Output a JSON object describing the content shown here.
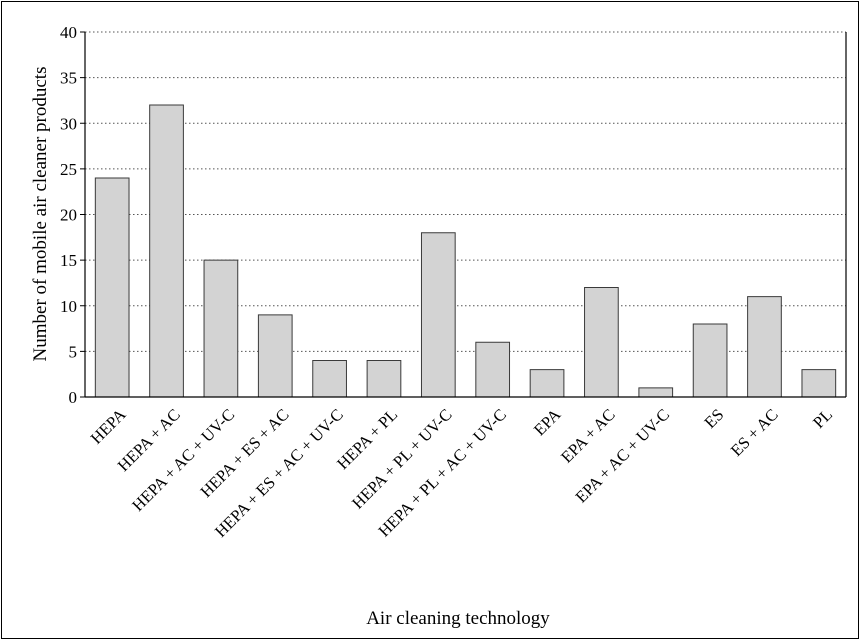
{
  "chart_data": {
    "type": "bar",
    "title": "",
    "xlabel": "Air cleaning technology",
    "ylabel": "Number of mobile air cleaner products",
    "ylim": [
      0,
      40
    ],
    "yticks": [
      0,
      5,
      10,
      15,
      20,
      25,
      30,
      35,
      40
    ],
    "grid": "horizontal-dotted",
    "categories": [
      "HEPA",
      "HEPA + AC",
      "HEPA + AC + UV-C",
      "HEPA + ES + AC",
      "HEPA + ES + AC + UV-C",
      "HEPA + PL",
      "HEPA + PL + UV-C",
      "HEPA + PL + AC + UV-C",
      "EPA",
      "EPA + AC",
      "EPA + AC + UV-C",
      "ES",
      "ES + AC",
      "PL"
    ],
    "values": [
      24,
      32,
      15,
      9,
      4,
      4,
      18,
      6,
      3,
      12,
      1,
      8,
      11,
      3
    ],
    "colors": {
      "bar_fill": "#d3d3d3",
      "bar_stroke": "#3a3a3a",
      "grid": "#555555"
    }
  }
}
